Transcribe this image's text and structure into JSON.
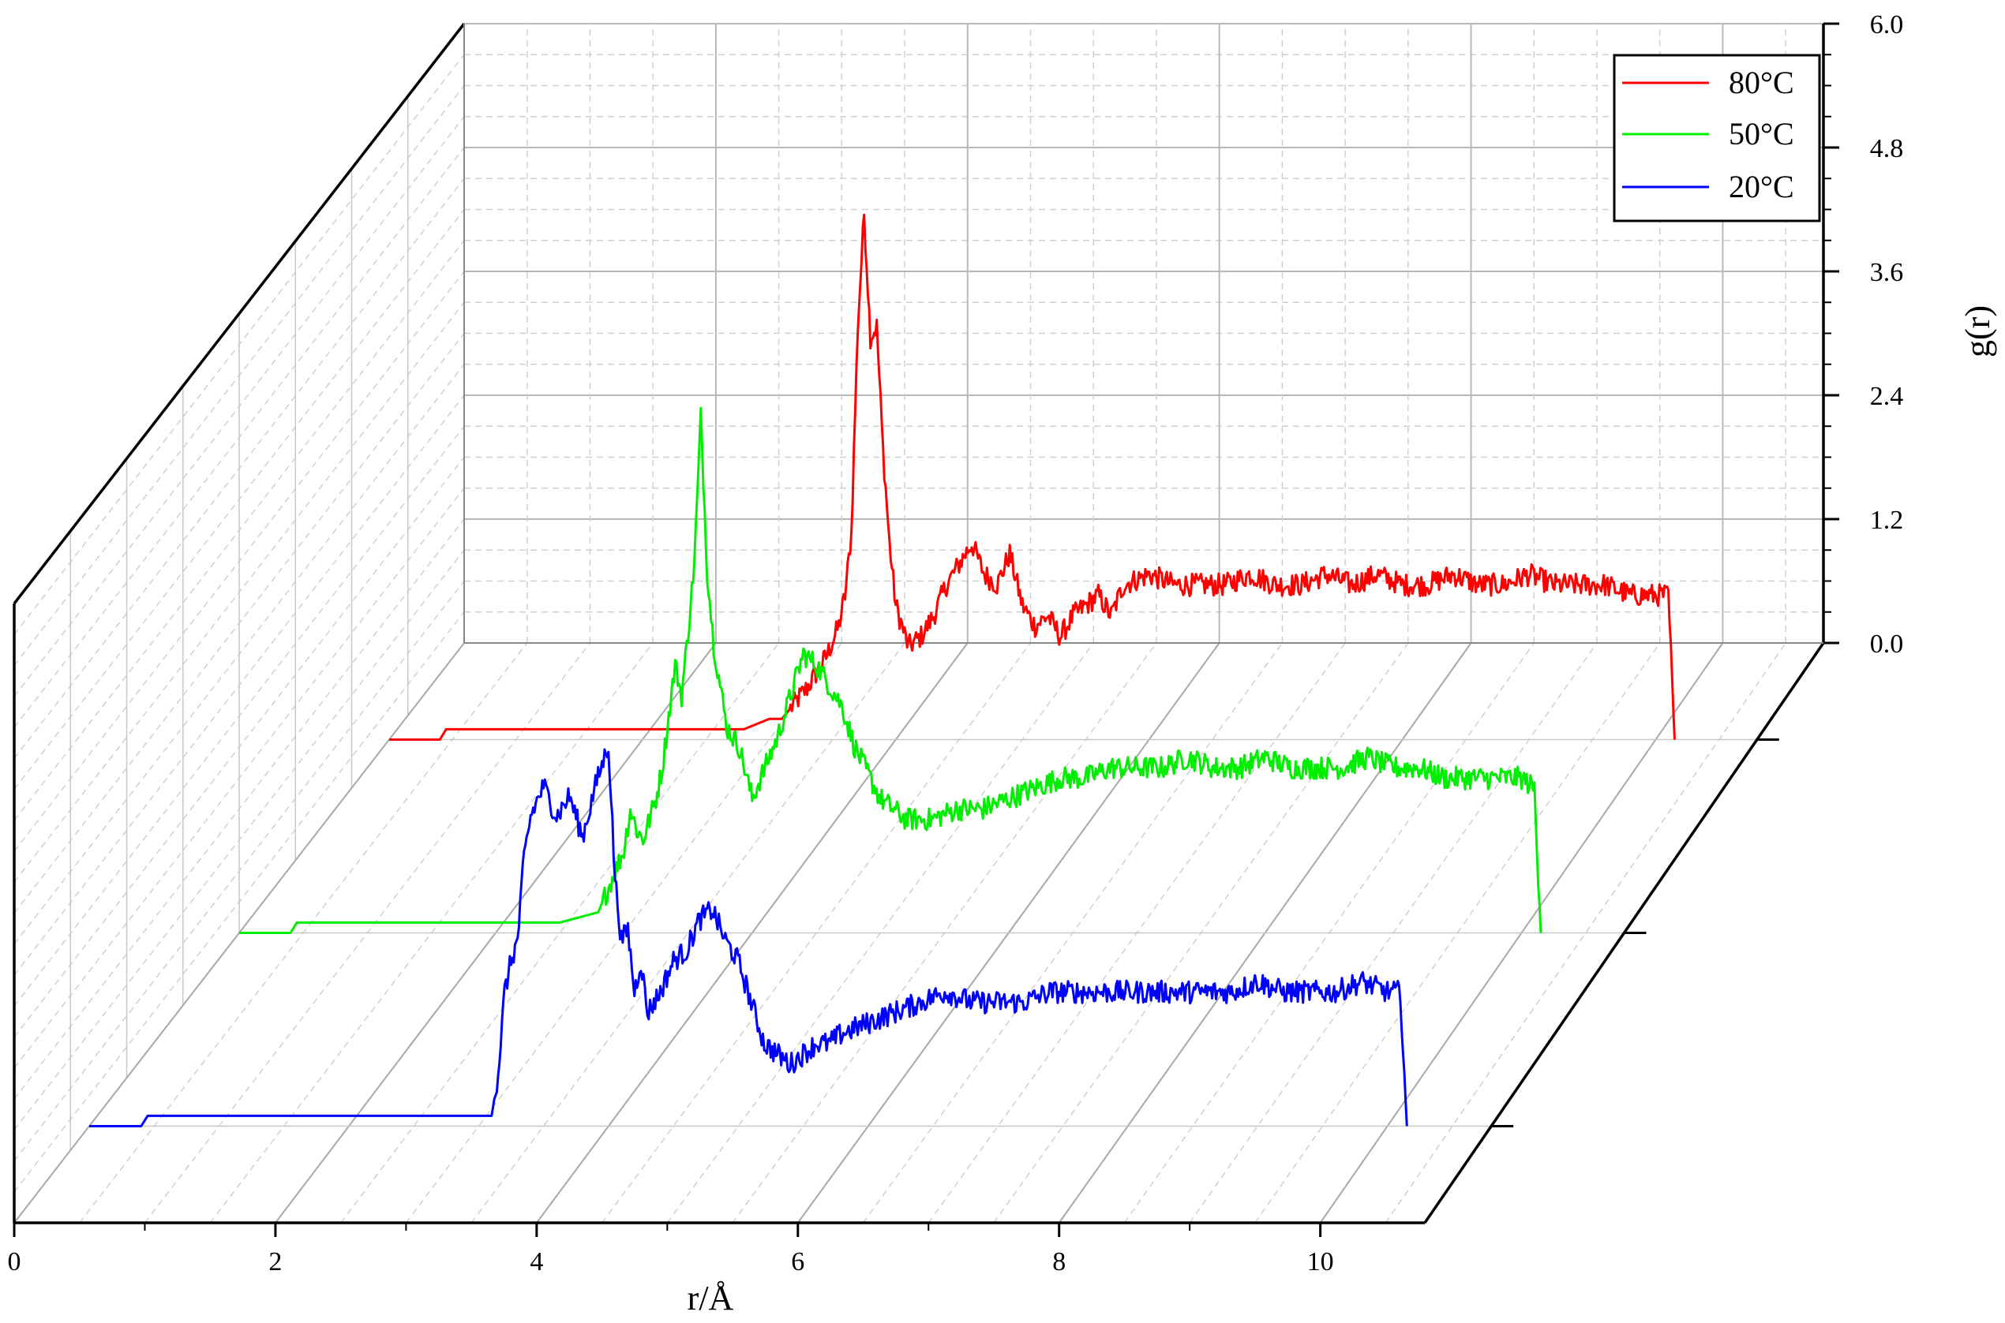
{
  "chart_data": {
    "type": "line",
    "title": "",
    "xlabel": "r/Å",
    "ylabel": "",
    "zlabel": "g(r)",
    "xlim": [
      0,
      10.8
    ],
    "zlim": [
      0,
      6.0
    ],
    "x_ticks": [
      "0",
      "2",
      "4",
      "6",
      "8",
      "10"
    ],
    "z_ticks": [
      "0.0",
      "1.2",
      "2.4",
      "3.6",
      "4.8",
      "6.0"
    ],
    "grid": true,
    "legend_position": "top-right",
    "series": [
      {
        "name": "80°C",
        "color": "#ff0000",
        "x": [
          0,
          0.4,
          0.45,
          1.9,
          2.5,
          2.8,
          3.0,
          3.1,
          3.2,
          3.3,
          3.4,
          3.45,
          3.5,
          3.55,
          3.6,
          3.65,
          3.7,
          3.75,
          3.8,
          3.85,
          3.9,
          3.95,
          4.0,
          4.05,
          4.1,
          4.2,
          4.3,
          4.4,
          4.5,
          4.6,
          4.7,
          4.8,
          4.9,
          5.0,
          5.1,
          5.2,
          5.3,
          5.4,
          5.5,
          5.6,
          5.7,
          5.8,
          6.0,
          6.2,
          6.4,
          6.6,
          6.8,
          7.0,
          7.2,
          7.4,
          7.6,
          7.8,
          8.0,
          8.2,
          8.4,
          8.6,
          8.8,
          9.0,
          9.2,
          9.4,
          9.6,
          9.8,
          10.0,
          10.1,
          10.15
        ],
        "values": [
          0.0,
          0.0,
          0.1,
          0.1,
          0.1,
          0.1,
          0.2,
          0.2,
          0.35,
          0.5,
          0.7,
          0.8,
          0.95,
          1.1,
          1.4,
          2.0,
          4.0,
          5.1,
          3.9,
          4.0,
          2.8,
          1.9,
          1.3,
          1.1,
          0.9,
          1.0,
          1.2,
          1.5,
          1.7,
          1.9,
          1.6,
          1.5,
          1.8,
          1.3,
          1.1,
          1.2,
          1.0,
          1.2,
          1.3,
          1.4,
          1.2,
          1.5,
          1.6,
          1.5,
          1.5,
          1.5,
          1.6,
          1.5,
          1.5,
          1.6,
          1.5,
          1.6,
          1.5,
          1.5,
          1.6,
          1.5,
          1.5,
          1.6,
          1.5,
          1.5,
          1.5,
          1.4,
          1.4,
          1.4,
          0.0
        ]
      },
      {
        "name": "50°C",
        "color": "#00ee00",
        "x": [
          0,
          0.4,
          0.45,
          2.2,
          2.5,
          2.8,
          2.9,
          3.0,
          3.05,
          3.1,
          3.15,
          3.2,
          3.25,
          3.3,
          3.35,
          3.4,
          3.45,
          3.5,
          3.55,
          3.6,
          3.65,
          3.7,
          3.8,
          3.9,
          4.0,
          4.1,
          4.2,
          4.3,
          4.4,
          4.5,
          4.6,
          4.7,
          4.8,
          5.0,
          5.2,
          5.4,
          5.6,
          5.8,
          6.0,
          6.2,
          6.4,
          6.6,
          6.8,
          7.0,
          7.2,
          7.4,
          7.6,
          7.8,
          8.0,
          8.2,
          8.4,
          8.6,
          8.8,
          9.0,
          9.2,
          9.4,
          9.6,
          9.8,
          10.0,
          10.1,
          10.15
        ],
        "values": [
          0.0,
          0.0,
          0.1,
          0.1,
          0.1,
          0.2,
          0.5,
          0.8,
          1.2,
          1.0,
          0.9,
          1.1,
          1.3,
          1.6,
          2.1,
          2.6,
          2.3,
          2.9,
          3.6,
          5.0,
          3.5,
          2.8,
          2.0,
          1.8,
          1.3,
          1.6,
          1.9,
          2.3,
          2.7,
          2.6,
          2.4,
          2.2,
          1.8,
          1.3,
          1.1,
          1.1,
          1.2,
          1.2,
          1.3,
          1.4,
          1.5,
          1.5,
          1.6,
          1.6,
          1.6,
          1.7,
          1.6,
          1.6,
          1.7,
          1.6,
          1.6,
          1.6,
          1.7,
          1.6,
          1.6,
          1.5,
          1.5,
          1.5,
          1.5,
          1.4,
          0.0
        ]
      },
      {
        "name": "20°C",
        "color": "#0000ff",
        "x": [
          0,
          0.4,
          0.45,
          2.5,
          3.1,
          3.15,
          3.2,
          3.25,
          3.3,
          3.35,
          3.4,
          3.5,
          3.6,
          3.7,
          3.8,
          3.9,
          4.0,
          4.05,
          4.1,
          4.15,
          4.2,
          4.25,
          4.3,
          4.4,
          4.5,
          4.6,
          4.7,
          4.8,
          4.9,
          5.0,
          5.1,
          5.2,
          5.3,
          5.4,
          5.5,
          5.6,
          5.7,
          5.8,
          6.0,
          6.2,
          6.4,
          6.6,
          6.8,
          7.0,
          7.2,
          7.4,
          7.6,
          7.8,
          8.0,
          8.2,
          8.4,
          8.6,
          8.8,
          9.0,
          9.2,
          9.4,
          9.6,
          9.8,
          10.0,
          10.1,
          10.15
        ],
        "values": [
          0.0,
          0.0,
          0.1,
          0.1,
          0.1,
          0.5,
          1.3,
          1.6,
          1.8,
          2.6,
          3.0,
          3.3,
          3.0,
          3.2,
          2.8,
          3.3,
          3.7,
          2.4,
          1.8,
          1.9,
          1.3,
          1.6,
          1.1,
          1.3,
          1.6,
          1.7,
          2.0,
          2.1,
          1.8,
          1.6,
          1.2,
          0.8,
          0.7,
          0.6,
          0.7,
          0.8,
          0.8,
          0.9,
          1.0,
          1.1,
          1.2,
          1.3,
          1.2,
          1.2,
          1.2,
          1.3,
          1.3,
          1.3,
          1.3,
          1.3,
          1.3,
          1.3,
          1.3,
          1.4,
          1.3,
          1.3,
          1.3,
          1.4,
          1.3,
          1.3,
          0.0
        ]
      }
    ]
  }
}
